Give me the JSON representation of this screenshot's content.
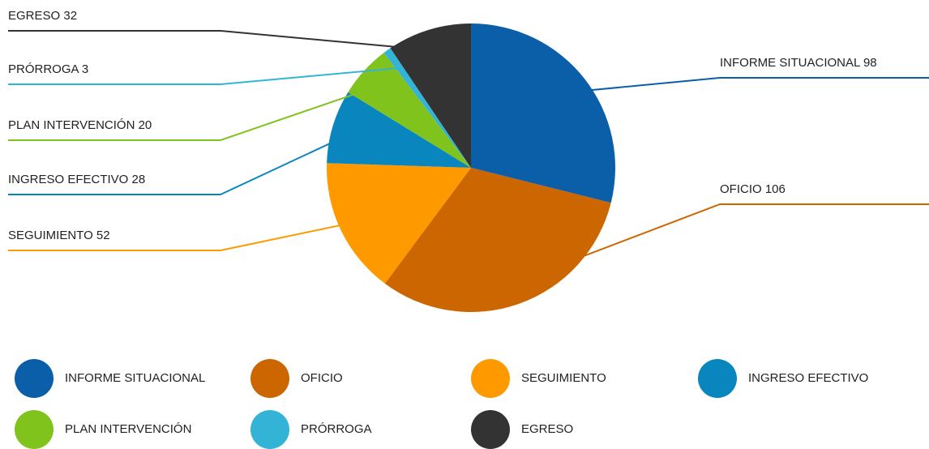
{
  "chart_data": {
    "type": "pie",
    "categories": [
      "INFORME SITUACIONAL",
      "OFICIO",
      "SEGUIMIENTO",
      "INGRESO EFECTIVO",
      "PLAN INTERVENCIÓN",
      "PRÓRROGA",
      "EGRESO"
    ],
    "values": [
      98,
      106,
      52,
      28,
      20,
      3,
      32
    ],
    "value_labels": [
      "INFORME SITUACIONAL 98",
      "OFICIO 106",
      "SEGUIMIENTO 52",
      "INGRESO EFECTIVO 28",
      "PLAN INTERVENCIÓN 20",
      "PRÓRROGA 3",
      "EGRESO 32"
    ],
    "colors": [
      "#0b5fa9",
      "#cc6600",
      "#ff9900",
      "#0a86bf",
      "#80c31c",
      "#33b4d6",
      "#333333"
    ]
  }
}
